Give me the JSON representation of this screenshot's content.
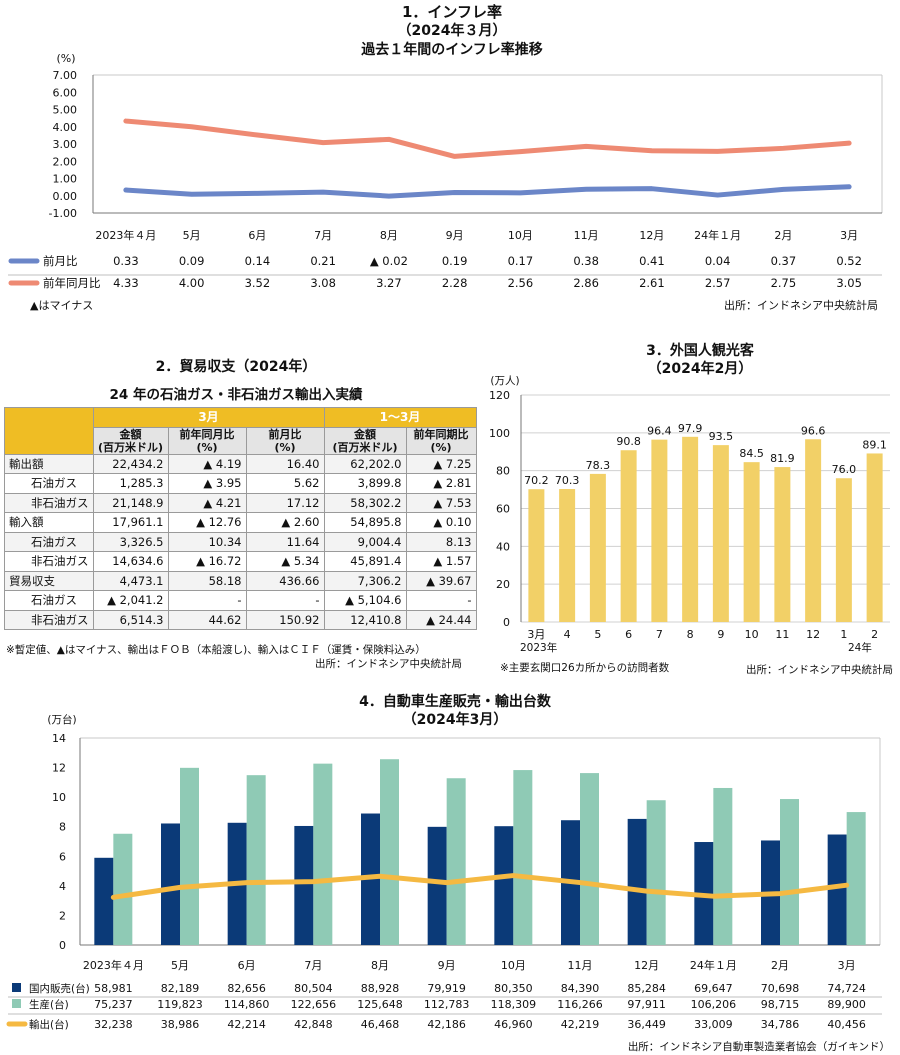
{
  "colors": {
    "blue": "#6b86c8",
    "salmon": "#ee8a73",
    "gold": "#efbd24",
    "yellowbar": "#f2d067",
    "navy": "#0b3a78",
    "teal": "#8fcab5",
    "orange": "#f5b942"
  },
  "s1": {
    "title1": "1．インフレ率",
    "title2": "（2024年３月）",
    "title3": "過去１年間のインフレ率推移",
    "unit": "(%)",
    "note": "▲はマイナス",
    "source": "出所：インドネシア中央統計局",
    "chart_data": {
      "type": "line",
      "categories": [
        "2023年４月",
        "5月",
        "6月",
        "7月",
        "8月",
        "9月",
        "10月",
        "11月",
        "12月",
        "24年１月",
        "2月",
        "3月"
      ],
      "yticks": [
        "7.00",
        "6.00",
        "5.00",
        "4.00",
        "3.00",
        "2.00",
        "1.00",
        "0.00",
        "-1.00"
      ],
      "ylim": [
        -1,
        7
      ],
      "series": [
        {
          "name": "前月比",
          "color": "#6b86c8",
          "values": [
            0.33,
            0.09,
            0.14,
            0.21,
            -0.02,
            0.19,
            0.17,
            0.38,
            0.41,
            0.04,
            0.37,
            0.52
          ],
          "labels": [
            "0.33",
            "0.09",
            "0.14",
            "0.21",
            "▲ 0.02",
            "0.19",
            "0.17",
            "0.38",
            "0.41",
            "0.04",
            "0.37",
            "0.52"
          ]
        },
        {
          "name": "前年同月比",
          "color": "#ee8a73",
          "values": [
            4.33,
            4.0,
            3.52,
            3.08,
            3.27,
            2.28,
            2.56,
            2.86,
            2.61,
            2.57,
            2.75,
            3.05
          ],
          "labels": [
            "4.33",
            "4.00",
            "3.52",
            "3.08",
            "3.27",
            "2.28",
            "2.56",
            "2.86",
            "2.61",
            "2.57",
            "2.75",
            "3.05"
          ]
        }
      ]
    }
  },
  "s2": {
    "title": "2．貿易収支（2024年）",
    "subtitle": "24 年の石油ガス・非石油ガス輸出入実績",
    "group1": "3月",
    "group2": "1～3月",
    "h_amount": "金額",
    "h_amount_unit": "(百万米ドル)",
    "h_yoy": "前年同月比",
    "h_mom": "前月比",
    "h_pct": "(%)",
    "h_yoy2": "前年同期比",
    "rows": [
      {
        "label": "輸出額",
        "c1": "22,434.2",
        "c2": "▲ 4.19",
        "c3": "16.40",
        "c4": "62,202.0",
        "c5": "▲ 7.25",
        "level": "main"
      },
      {
        "label": "石油ガス",
        "c1": "1,285.3",
        "c2": "▲ 3.95",
        "c3": "5.62",
        "c4": "3,899.8",
        "c5": "▲ 2.81",
        "level": "sub"
      },
      {
        "label": "非石油ガス",
        "c1": "21,148.9",
        "c2": "▲ 4.21",
        "c3": "17.12",
        "c4": "58,302.2",
        "c5": "▲ 7.53",
        "level": "sub"
      },
      {
        "label": "輸入額",
        "c1": "17,961.1",
        "c2": "▲ 12.76",
        "c3": "▲ 2.60",
        "c4": "54,895.8",
        "c5": "▲ 0.10",
        "level": "main"
      },
      {
        "label": "石油ガス",
        "c1": "3,326.5",
        "c2": "10.34",
        "c3": "11.64",
        "c4": "9,004.4",
        "c5": "8.13",
        "level": "sub"
      },
      {
        "label": "非石油ガス",
        "c1": "14,634.6",
        "c2": "▲ 16.72",
        "c3": "▲ 5.34",
        "c4": "45,891.4",
        "c5": "▲ 1.57",
        "level": "sub"
      },
      {
        "label": "貿易収支",
        "c1": "4,473.1",
        "c2": "58.18",
        "c3": "436.66",
        "c4": "7,306.2",
        "c5": "▲ 39.67",
        "level": "main"
      },
      {
        "label": "石油ガス",
        "c1": "▲ 2,041.2",
        "c2": "-",
        "c3": "-",
        "c4": "▲ 5,104.6",
        "c5": "-",
        "level": "sub"
      },
      {
        "label": "非石油ガス",
        "c1": "6,514.3",
        "c2": "44.62",
        "c3": "150.92",
        "c4": "12,410.8",
        "c5": "▲ 24.44",
        "level": "sub"
      }
    ],
    "note": "※暫定値、▲はマイナス、輸出はＦＯＢ（本船渡し)、輸入はＣＩＦ（運賃・保険料込み）",
    "source": "出所：インドネシア中央統計局"
  },
  "s3": {
    "title1": "3．外国人観光客",
    "title2": "（2024年2月）",
    "unit": "(万人)",
    "note": "※主要玄関口26カ所からの訪問者数",
    "source": "出所：インドネシア中央統計局",
    "year1": "2023年",
    "year2": "24年",
    "chart_data": {
      "type": "bar",
      "categories": [
        "3月",
        "4",
        "5",
        "6",
        "7",
        "8",
        "9",
        "10",
        "11",
        "12",
        "1",
        "2"
      ],
      "values": [
        70.2,
        70.3,
        78.3,
        90.8,
        96.4,
        97.9,
        93.5,
        84.5,
        81.9,
        96.6,
        76.0,
        89.1
      ],
      "labels": [
        "70.2",
        "70.3",
        "78.3",
        "90.8",
        "96.4",
        "97.9",
        "93.5",
        "84.5",
        "81.9",
        "96.6",
        "76.0",
        "89.1"
      ],
      "yticks": [
        "120",
        "100",
        "80",
        "60",
        "40",
        "20",
        "0"
      ],
      "ylim": [
        0,
        120
      ]
    }
  },
  "s4": {
    "title1": "4．自動車生産販売・輸出台数",
    "title2": "（2024年3月）",
    "unit": "(万台)",
    "source": "出所：インドネシア自動車製造業者協会（ガイキンド）",
    "chart_data": {
      "type": "bar",
      "categories": [
        "2023年４月",
        "5月",
        "6月",
        "7月",
        "8月",
        "9月",
        "10月",
        "11月",
        "12月",
        "24年１月",
        "2月",
        "3月"
      ],
      "yticks": [
        "14",
        "12",
        "10",
        "8",
        "6",
        "4",
        "2",
        "0"
      ],
      "ylim": [
        0,
        14
      ],
      "series": [
        {
          "name": "国内販売(台)",
          "color": "#0b3a78",
          "values": [
            58981,
            82189,
            82656,
            80504,
            88928,
            79919,
            80350,
            84390,
            85284,
            69647,
            70698,
            74724
          ],
          "labels": [
            "58,981",
            "82,189",
            "82,656",
            "80,504",
            "88,928",
            "79,919",
            "80,350",
            "84,390",
            "85,284",
            "69,647",
            "70,698",
            "74,724"
          ]
        },
        {
          "name": "生産(台)",
          "color": "#8fcab5",
          "values": [
            75237,
            119823,
            114860,
            122656,
            125648,
            112783,
            118309,
            116266,
            97911,
            106206,
            98715,
            89900
          ],
          "labels": [
            "75,237",
            "119,823",
            "114,860",
            "122,656",
            "125,648",
            "112,783",
            "118,309",
            "116,266",
            "97,911",
            "106,206",
            "98,715",
            "89,900"
          ]
        },
        {
          "name": "輸出(台)",
          "color": "#f5b942",
          "values": [
            32238,
            38986,
            42214,
            42848,
            46468,
            42186,
            46960,
            42219,
            36449,
            33009,
            34786,
            40456
          ],
          "labels": [
            "32,238",
            "38,986",
            "42,214",
            "42,848",
            "46,468",
            "42,186",
            "46,960",
            "42,219",
            "36,449",
            "33,009",
            "34,786",
            "40,456"
          ]
        }
      ]
    }
  }
}
